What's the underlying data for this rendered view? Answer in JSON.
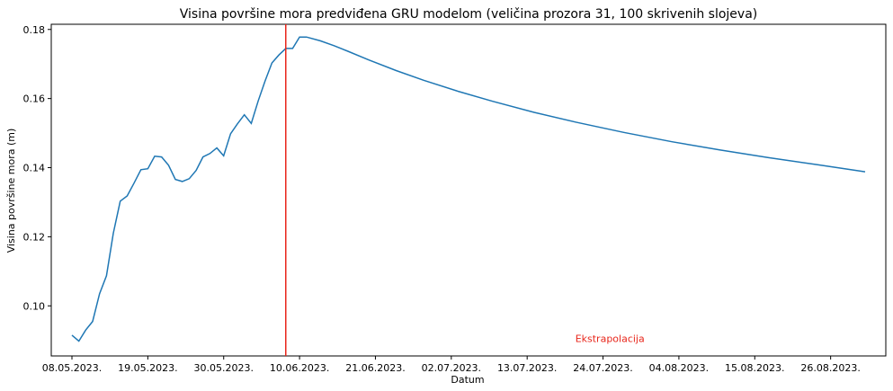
{
  "chart_data": {
    "type": "line",
    "title": "Visina površine mora predviđena GRU modelom (veličina prozora 31, 100 skrivenih slojeva)",
    "xlabel": "Datum",
    "ylabel": "Visina površine mora (m)",
    "x_start_date": "2023-05-08",
    "xlim": [
      "2023-05-05",
      "2023-09-03"
    ],
    "ylim": [
      0.0855,
      0.1815
    ],
    "grid": false,
    "x_ticks": [
      "08.05.2023.",
      "19.05.2023.",
      "30.05.2023.",
      "10.06.2023.",
      "21.06.2023.",
      "02.07.2023.",
      "13.07.2023.",
      "24.07.2023.",
      "04.08.2023.",
      "15.08.2023.",
      "26.08.2023."
    ],
    "y_ticks": [
      "0.10",
      "0.12",
      "0.14",
      "0.16",
      "0.18"
    ],
    "vertical_line": {
      "date": "2023-06-08",
      "color": "#e8261b"
    },
    "annotation": {
      "text": "Ekstrapolacija",
      "date": "2023-07-25",
      "y": 0.0895,
      "color": "#e8261b"
    },
    "series": [
      {
        "color": "#1f77b4",
        "x": [
          "2023-05-08",
          "2023-05-09",
          "2023-05-10",
          "2023-05-11",
          "2023-05-12",
          "2023-05-13",
          "2023-05-14",
          "2023-05-15",
          "2023-05-16",
          "2023-05-17",
          "2023-05-18",
          "2023-05-19",
          "2023-05-20",
          "2023-05-21",
          "2023-05-22",
          "2023-05-23",
          "2023-05-24",
          "2023-05-25",
          "2023-05-26",
          "2023-05-27",
          "2023-05-28",
          "2023-05-29",
          "2023-05-30",
          "2023-05-31",
          "2023-06-01",
          "2023-06-02",
          "2023-06-03",
          "2023-06-04",
          "2023-06-05",
          "2023-06-06",
          "2023-06-07",
          "2023-06-08",
          "2023-06-09",
          "2023-06-10",
          "2023-06-11",
          "2023-06-13",
          "2023-06-15",
          "2023-06-17",
          "2023-06-20",
          "2023-06-24",
          "2023-06-28",
          "2023-07-03",
          "2023-07-08",
          "2023-07-14",
          "2023-07-20",
          "2023-07-27",
          "2023-08-03",
          "2023-08-10",
          "2023-08-17",
          "2023-08-24",
          "2023-08-31"
        ],
        "y": [
          0.0915,
          0.0898,
          0.093,
          0.0955,
          0.1035,
          0.1087,
          0.121,
          0.1303,
          0.1318,
          0.1355,
          0.1394,
          0.1397,
          0.1433,
          0.1431,
          0.1407,
          0.1366,
          0.136,
          0.1368,
          0.1392,
          0.1431,
          0.1441,
          0.1457,
          0.1434,
          0.1498,
          0.1527,
          0.1553,
          0.1528,
          0.1593,
          0.1651,
          0.1703,
          0.1726,
          0.1745,
          0.1745,
          0.1778,
          0.1778,
          0.1767,
          0.1753,
          0.1737,
          0.1712,
          0.1681,
          0.1653,
          0.1621,
          0.1592,
          0.156,
          0.1532,
          0.1502,
          0.1475,
          0.1451,
          0.1429,
          0.1409,
          0.1388
        ]
      }
    ]
  }
}
